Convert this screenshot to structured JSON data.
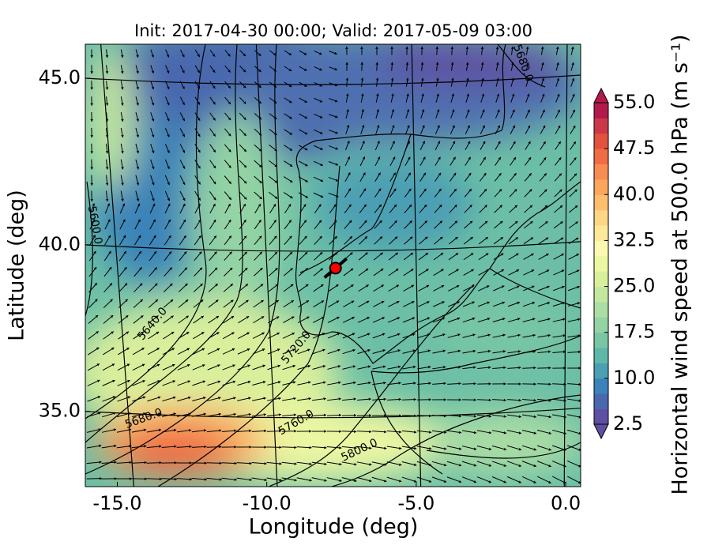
{
  "chart_data": {
    "type": "map",
    "title": "Init: 2017-04-30 00:00; Valid: 2017-05-09 03:00",
    "xlabel": "Longitude (deg)",
    "ylabel": "Latitude (deg)",
    "xlim": [
      -16.07,
      0.5
    ],
    "ylim": [
      32.74,
      46.02
    ],
    "xticks": [
      {
        "value": -15,
        "label": "-15.0"
      },
      {
        "value": -10,
        "label": "-10.0"
      },
      {
        "value": -5,
        "label": "-5.0"
      },
      {
        "value": 0,
        "label": "0.0"
      }
    ],
    "yticks": [
      {
        "value": 35,
        "label": "35.0"
      },
      {
        "value": 40,
        "label": "40.0"
      },
      {
        "value": 45,
        "label": "45.0"
      }
    ],
    "colorbar": {
      "label": "Horizontal wind speed at 500.0 hPa (m s⁻¹)",
      "lim": [
        2.5,
        55
      ],
      "ticks": [
        2.5,
        {
          "value": 10,
          "label": "10.0"
        },
        17.5,
        {
          "value": 25,
          "label": "25.0"
        },
        32.5,
        {
          "value": 40,
          "label": "40.0"
        },
        47.5,
        {
          "value": 55,
          "label": "55.0"
        }
      ],
      "colors": [
        "#5e4fa2",
        "#4a68ae",
        "#3b83b8",
        "#4b9fb3",
        "#5fb7a8",
        "#78c6a4",
        "#93d3a4",
        "#abdda4",
        "#c3e79f",
        "#d9ef9b",
        "#ecf7a2",
        "#fbf8b0",
        "#fee99a",
        "#fed684",
        "#fdbe6e",
        "#fca55d",
        "#f88d52",
        "#f06c44",
        "#e1523f",
        "#cc374a",
        "#b21a4b"
      ]
    },
    "contour_labels": [
      "5680.0",
      "5600.0",
      "5640.0",
      "5720.0",
      "5680.0",
      "5760.0",
      "5800.0"
    ],
    "marker": {
      "lon": -7.7,
      "lat": 39.3,
      "color": "#ff0000"
    }
  }
}
